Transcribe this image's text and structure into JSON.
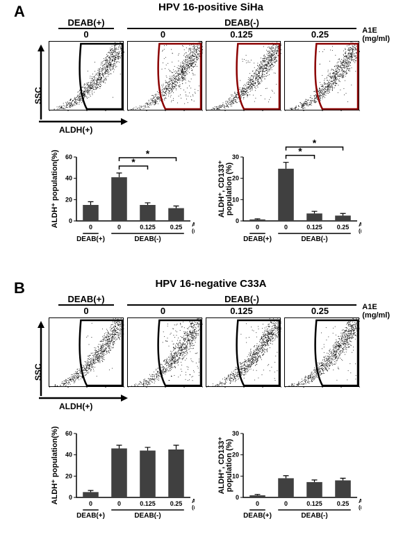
{
  "panels": {
    "A": {
      "title": "HPV 16-positive SiHa",
      "deab_plus": "DEAB(+)",
      "deab_minus": "DEAB(-)",
      "doses": [
        "0",
        "0",
        "0.125",
        "0.25"
      ],
      "a1e_label": "A1E",
      "a1e_unit": "(mg/ml)",
      "axis_y": "SSC",
      "axis_x": "ALDH(+)",
      "scatter_gate_fill": [
        40,
        15,
        12
      ],
      "bar1": {
        "ylabel": "ALDH⁺ population(%)",
        "ymax": 60,
        "ytick": 20,
        "bars": [
          {
            "v": 15,
            "err": 3
          },
          {
            "v": 41,
            "err": 4
          },
          {
            "v": 15,
            "err": 2
          },
          {
            "v": 12,
            "err": 2
          }
        ],
        "sig": [
          [
            1,
            2
          ],
          [
            1,
            3
          ]
        ]
      },
      "bar2": {
        "ylabel": "ALDH⁺, CD133⁺",
        "ylabel2": "population (%)",
        "ymax": 30,
        "ytick": 10,
        "bars": [
          {
            "v": 0.7,
            "err": 0.3
          },
          {
            "v": 24.5,
            "err": 3
          },
          {
            "v": 3.5,
            "err": 1
          },
          {
            "v": 2.5,
            "err": 1
          }
        ],
        "sig": [
          [
            1,
            2
          ],
          [
            1,
            3
          ]
        ]
      },
      "bar_x": [
        "0",
        "0",
        "0.125",
        "0.25"
      ],
      "bar_color": "#404040",
      "grid_color": "#000000"
    },
    "B": {
      "title": "HPV 16-negative C33A",
      "deab_plus": "DEAB(+)",
      "deab_minus": "DEAB(-)",
      "doses": [
        "0",
        "0",
        "0.125",
        "0.25"
      ],
      "a1e_label": "A1E",
      "a1e_unit": "(mg/ml)",
      "axis_y": "SSC",
      "axis_x": "ALDH(+)",
      "bar1": {
        "ylabel": "ALDH⁺ population(%)",
        "ymax": 60,
        "ytick": 20,
        "bars": [
          {
            "v": 5,
            "err": 1.5
          },
          {
            "v": 46,
            "err": 3
          },
          {
            "v": 44,
            "err": 3
          },
          {
            "v": 45,
            "err": 4
          }
        ],
        "sig": []
      },
      "bar2": {
        "ylabel": "ALDH⁺, CD133⁺",
        "ylabel2": "population (%)",
        "ymax": 30,
        "ytick": 10,
        "bars": [
          {
            "v": 1,
            "err": 0.4
          },
          {
            "v": 9,
            "err": 1.2
          },
          {
            "v": 7.2,
            "err": 1
          },
          {
            "v": 8,
            "err": 1
          }
        ],
        "sig": []
      },
      "bar_x": [
        "0",
        "0",
        "0.125",
        "0.25"
      ],
      "bar_color": "#404040"
    }
  },
  "colors": {
    "bar": "#404040",
    "axis": "#000000",
    "bg": "#ffffff"
  }
}
